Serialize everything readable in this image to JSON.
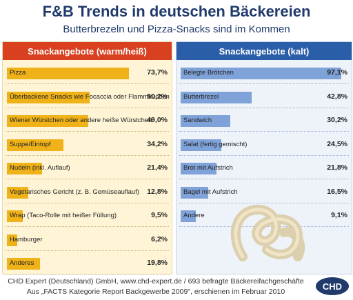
{
  "title": "F&B Trends in deutschen Bäckereien",
  "subtitle": "Butterbrezeln und Pizza-Snacks sind im Kommen",
  "footer": {
    "line1": "CHD Expert (Deutschland) GmbH, www.chd-expert.de / 693 befragte Bäckereifachgeschäfte",
    "line2": "Aus „FACTS Kategorie Report Backgewerbe 2009\", erschienen im Februar 2010",
    "logo_text": "CHD"
  },
  "colors": {
    "left_header": "#d8401f",
    "right_header": "#2b5ea8",
    "left_bar": "#efb219",
    "right_bar": "#7fa2d8",
    "title": "#1f3a6b"
  },
  "chart_data": [
    {
      "type": "bar",
      "orientation": "horizontal",
      "title": "Snackangebote (warm/heiß)",
      "categories": [
        "Pizza",
        "Überbackene Snacks wie Focaccia oder Flammkuchen",
        "Wiener Würstchen oder andere heiße Würstchen",
        "Suppe/Eintopf",
        "Nudeln (inkl. Auflauf)",
        "Vegetarisches Gericht (z. B. Gemüseauflauf)",
        "Wrap (Taco-Rolle mit heißer Füllung)",
        "Hamburger",
        "Anderes"
      ],
      "values": [
        73.7,
        50.2,
        49.0,
        34.2,
        21.4,
        12.8,
        9.5,
        6.2,
        19.8
      ],
      "value_labels": [
        "73,7%",
        "50,2%",
        "49,0%",
        "34,2%",
        "21,4%",
        "12,8%",
        "9,5%",
        "6,2%",
        "19,8%"
      ],
      "xlim": [
        0,
        100
      ]
    },
    {
      "type": "bar",
      "orientation": "horizontal",
      "title": "Snackangebote (kalt)",
      "categories": [
        "Belegte Brötchen",
        "Butterbrezel",
        "Sandwich",
        "Salat (fertig gemischt)",
        "Brot mit Aufstrich",
        "Bagel mit Aufstrich",
        "Andere"
      ],
      "values": [
        97.1,
        42.8,
        30.2,
        24.5,
        21.8,
        16.5,
        9.1
      ],
      "value_labels": [
        "97,1%",
        "42,8%",
        "30,2%",
        "24,5%",
        "21,8%",
        "16,5%",
        "9,1%"
      ],
      "xlim": [
        0,
        100
      ]
    }
  ]
}
